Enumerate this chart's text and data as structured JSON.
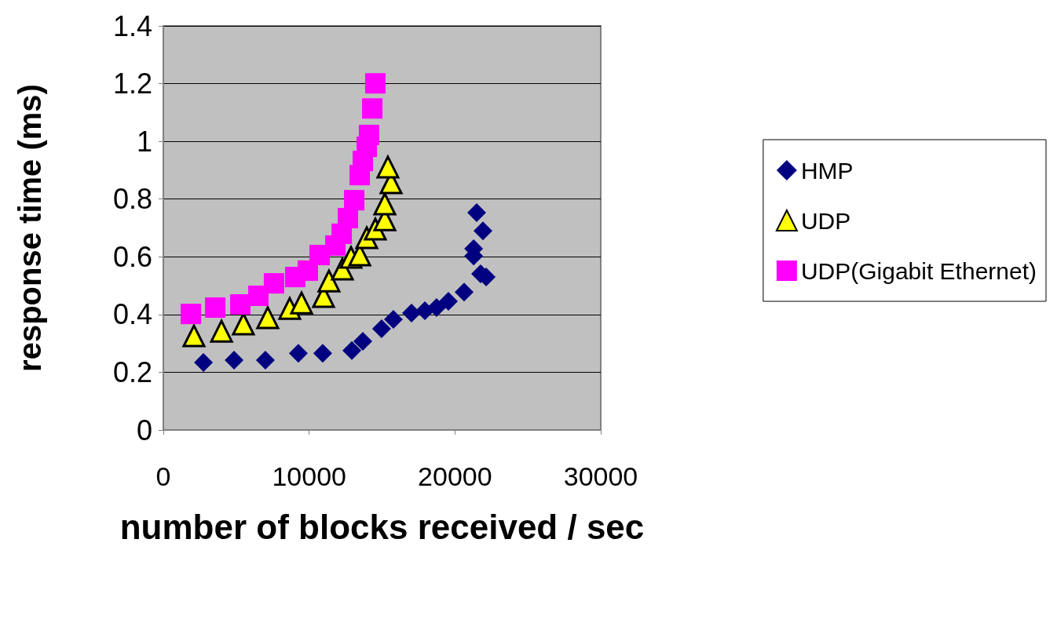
{
  "chart_data": {
    "type": "scatter",
    "xlabel": "number of blocks received / sec",
    "ylabel": "response time (ms)",
    "xlim": [
      0,
      30000
    ],
    "xticks": [
      0,
      10000,
      20000,
      30000
    ],
    "ylim": [
      0,
      1.4
    ],
    "yticks": [
      0,
      0.2,
      0.4,
      0.6,
      0.8,
      1,
      1.2,
      1.4
    ],
    "grid": "y",
    "legend": "right",
    "series": [
      {
        "name": "HMP",
        "color": "#000080",
        "marker": "diamond",
        "x": [
          2750,
          4850,
          7000,
          9260,
          10930,
          12930,
          13680,
          14970,
          15780,
          17020,
          17940,
          18740,
          19550,
          20630,
          21490,
          21920,
          21280,
          21280,
          21760,
          22140
        ],
        "values": [
          0.234,
          0.242,
          0.242,
          0.266,
          0.266,
          0.275,
          0.307,
          0.351,
          0.383,
          0.405,
          0.413,
          0.424,
          0.446,
          0.478,
          0.753,
          0.69,
          0.628,
          0.603,
          0.541,
          0.53
        ]
      },
      {
        "name": "UDP",
        "color": "#ffff00",
        "marker": "triangle",
        "x": [
          2100,
          3990,
          5490,
          7160,
          8670,
          9480,
          10990,
          11360,
          12280,
          12870,
          13470,
          13950,
          14540,
          15190,
          15190,
          15620,
          15400
        ],
        "values": [
          0.326,
          0.342,
          0.367,
          0.389,
          0.421,
          0.44,
          0.462,
          0.516,
          0.557,
          0.598,
          0.606,
          0.666,
          0.696,
          0.728,
          0.783,
          0.856,
          0.911
        ]
      },
      {
        "name": "UDP(Gigabit Ethernet)",
        "color": "#ff00ff",
        "marker": "square",
        "x": [
          1890,
          3560,
          5280,
          6520,
          7590,
          9050,
          9910,
          10720,
          11800,
          12230,
          12660,
          13090,
          13470,
          13680,
          13950,
          14110,
          14330,
          14540
        ],
        "values": [
          0.402,
          0.424,
          0.435,
          0.465,
          0.508,
          0.53,
          0.552,
          0.606,
          0.639,
          0.68,
          0.734,
          0.796,
          0.883,
          0.932,
          0.981,
          1.022,
          1.114,
          1.201
        ]
      }
    ]
  }
}
